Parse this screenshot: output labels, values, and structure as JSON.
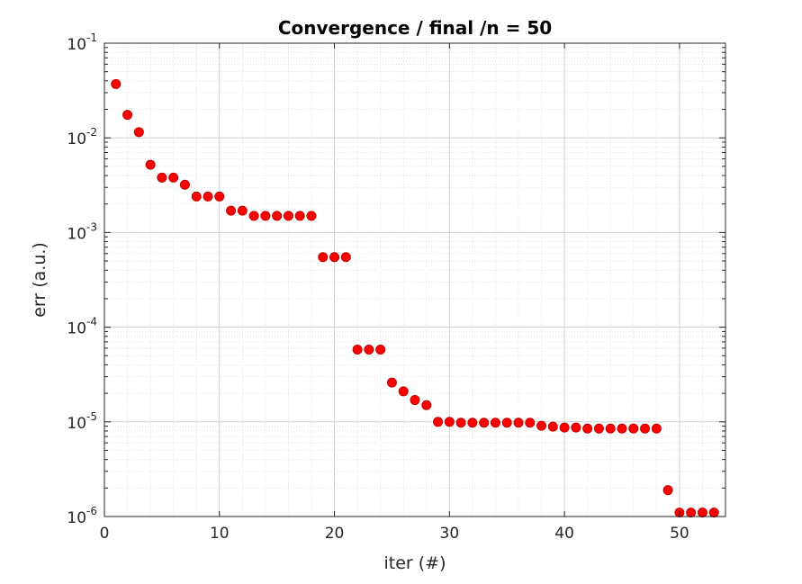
{
  "chart_data": {
    "type": "scatter",
    "title": "Convergence / final /n = 50",
    "xlabel": "iter (#)",
    "ylabel": "err (a.u.)",
    "xlim": [
      0,
      54
    ],
    "ylim": [
      1e-06,
      0.1
    ],
    "yscale": "log",
    "grid": true,
    "minor_grid": true,
    "marker_color": "#ff0000",
    "marker_edge_color": "#c00000",
    "x_ticks": [
      0,
      10,
      20,
      30,
      40,
      50
    ],
    "x_tick_labels": [
      "0",
      "10",
      "20",
      "30",
      "40",
      "50"
    ],
    "y_ticks": [
      {
        "value": 1e-06,
        "base": "10",
        "exp": "-6"
      },
      {
        "value": 1e-05,
        "base": "10",
        "exp": "-5"
      },
      {
        "value": 0.0001,
        "base": "10",
        "exp": "-4"
      },
      {
        "value": 0.001,
        "base": "10",
        "exp": "-3"
      },
      {
        "value": 0.01,
        "base": "10",
        "exp": "-2"
      },
      {
        "value": 0.1,
        "base": "10",
        "exp": "-1"
      }
    ],
    "x": [
      1,
      2,
      3,
      4,
      5,
      6,
      7,
      8,
      9,
      10,
      11,
      12,
      13,
      14,
      15,
      16,
      17,
      18,
      19,
      20,
      21,
      22,
      23,
      24,
      25,
      26,
      27,
      28,
      29,
      30,
      31,
      32,
      33,
      34,
      35,
      36,
      37,
      38,
      39,
      40,
      41,
      42,
      43,
      44,
      45,
      46,
      47,
      48,
      49,
      50,
      51,
      52,
      53
    ],
    "y": [
      0.037,
      0.0175,
      0.0115,
      0.0052,
      0.0038,
      0.0038,
      0.0032,
      0.0024,
      0.0024,
      0.0024,
      0.0017,
      0.0017,
      0.0015,
      0.0015,
      0.0015,
      0.0015,
      0.0015,
      0.0015,
      0.00055,
      0.00055,
      0.00055,
      5.8e-05,
      5.8e-05,
      5.8e-05,
      2.6e-05,
      2.1e-05,
      1.7e-05,
      1.5e-05,
      1e-05,
      1e-05,
      9.8e-06,
      9.8e-06,
      9.8e-06,
      9.8e-06,
      9.8e-06,
      9.8e-06,
      9.8e-06,
      9.1e-06,
      8.9e-06,
      8.7e-06,
      8.7e-06,
      8.5e-06,
      8.5e-06,
      8.5e-06,
      8.5e-06,
      8.5e-06,
      8.5e-06,
      8.5e-06,
      1.9e-06,
      1.1e-06,
      1.1e-06,
      1.1e-06,
      1.1e-06
    ]
  }
}
